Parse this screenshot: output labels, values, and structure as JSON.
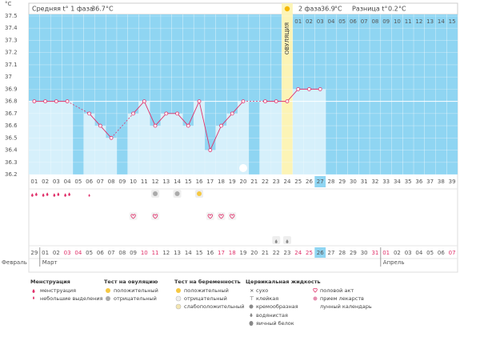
{
  "header": {
    "phase1_label": "Средняя t° 1 фаза",
    "phase1_avg": 36.7,
    "unit": "°C",
    "phase2_label": "2 фаза",
    "phase2_avg": 36.9,
    "diff_label": "Разница t°",
    "diff": 0.2
  },
  "chart_data": {
    "type": "bbt",
    "y_unit": "°C",
    "ylim": [
      36.2,
      37.5
    ],
    "yticks": [
      37.5,
      37.4,
      37.3,
      37.2,
      37.1,
      37,
      36.9,
      36.8,
      36.7,
      36.6,
      36.5,
      36.4,
      36.3,
      36.2
    ],
    "cycle_days": [
      "01",
      "02",
      "03",
      "04",
      "05",
      "06",
      "07",
      "08",
      "09",
      "10",
      "11",
      "12",
      "13",
      "14",
      "15",
      "16",
      "17",
      "18",
      "19",
      "20",
      "21",
      "22",
      "23",
      "24",
      "25",
      "26",
      "27",
      "28",
      "29",
      "30",
      "31",
      "32",
      "33",
      "34",
      "35",
      "36",
      "37",
      "38",
      "39"
    ],
    "phase2_days": [
      "01",
      "02",
      "03",
      "04",
      "05",
      "06",
      "07",
      "08",
      "09",
      "10",
      "11",
      "12",
      "13",
      "14",
      "15"
    ],
    "temperatures": [
      36.8,
      36.8,
      36.8,
      36.8,
      null,
      36.7,
      36.6,
      36.5,
      null,
      36.7,
      36.8,
      36.6,
      36.7,
      36.7,
      36.6,
      36.8,
      36.4,
      36.6,
      36.7,
      36.8,
      null,
      36.8,
      36.8,
      36.8,
      36.9,
      36.9,
      36.9,
      null,
      null,
      null,
      null,
      null,
      null,
      null,
      null,
      null,
      null,
      null,
      null
    ],
    "cover_line": 36.8,
    "ovulation_day": 24,
    "ovulation_label": "ОВУЛЯЦИЯ",
    "highlight_day": 27,
    "dates": [
      "29",
      "01",
      "02",
      "03",
      "04",
      "05",
      "06",
      "07",
      "08",
      "09",
      "10",
      "11",
      "12",
      "13",
      "14",
      "15",
      "16",
      "17",
      "18",
      "19",
      "20",
      "21",
      "22",
      "23",
      "24",
      "25",
      "26",
      "27",
      "28",
      "29",
      "30",
      "31",
      "01",
      "02",
      "03",
      "04",
      "05",
      "06",
      "07"
    ],
    "weekend": [
      false,
      false,
      false,
      true,
      true,
      false,
      false,
      false,
      false,
      false,
      true,
      true,
      false,
      false,
      false,
      false,
      false,
      true,
      true,
      false,
      false,
      false,
      false,
      false,
      true,
      true,
      false,
      false,
      false,
      false,
      false,
      true,
      true,
      false,
      false,
      false,
      false,
      false,
      true
    ],
    "months": [
      {
        "name": "Февраль",
        "start_day": 1
      },
      {
        "name": "Март",
        "start_day": 2
      },
      {
        "name": "Апрель",
        "start_day": 33
      }
    ],
    "menstruation_heavy": [
      1,
      2,
      3,
      4
    ],
    "menstruation_light": [
      6
    ],
    "ovulation_test_positive": [
      16
    ],
    "ovulation_test_negative": [
      12,
      14
    ],
    "intercourse": [
      10,
      12,
      17,
      18,
      19
    ],
    "lunar": [
      20
    ],
    "cervical_watery": [
      23,
      24
    ]
  },
  "legend": {
    "menstruation": {
      "title": "Менструация",
      "items": [
        "менструация",
        "небольшие выделения"
      ]
    },
    "ovulation_test": {
      "title": "Тест на овуляцию",
      "items": [
        "положительный",
        "отрицательный"
      ]
    },
    "pregnancy_test": {
      "title": "Тест на беременность",
      "items": [
        "положительный",
        "отрицательный",
        "слабоположительный"
      ]
    },
    "cervical": {
      "title": "Цервикальная жидкость",
      "items": [
        "сухо",
        "клейкая",
        "кремообразная",
        "водянистая",
        "яичный белок"
      ]
    },
    "other": {
      "items": [
        "половой акт",
        "прием лекарств",
        "лунный календарь"
      ]
    }
  }
}
